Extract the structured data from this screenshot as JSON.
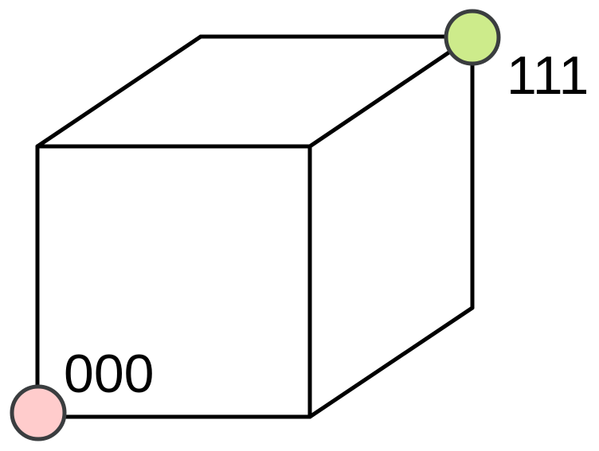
{
  "diagram": {
    "vertices": [
      {
        "id": "origin",
        "label": "000",
        "color": "#ffcccc"
      },
      {
        "id": "opposite",
        "label": "111",
        "color": "#cdeb8b"
      }
    ]
  }
}
